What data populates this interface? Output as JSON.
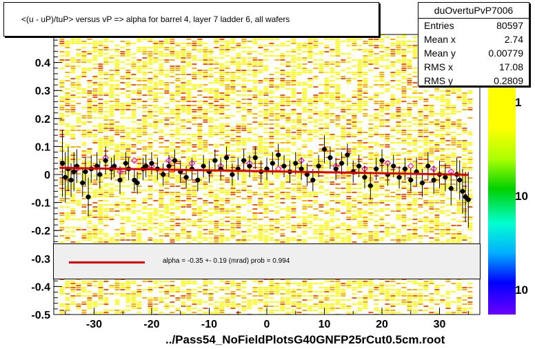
{
  "title": "<(u - uP)/tuP> versus   vP => alpha for barrel 4, layer 7 ladder 6, all wafers",
  "stats": {
    "name": "duOvertuPvP7006",
    "rows": [
      {
        "label": "Entries",
        "value": "80597"
      },
      {
        "label": "Mean x",
        "value": "2.74"
      },
      {
        "label": "Mean y",
        "value": "0.00779"
      },
      {
        "label": "RMS x",
        "value": "17.08"
      },
      {
        "label": "RMS y",
        "value": "0.2809"
      }
    ]
  },
  "fit_text": "alpha =   -0.35 +-  0.19 (mrad) prob = 0.994",
  "xlabel": "../Pass54_NoFieldPlotsG40GNFP25rCut0.5cm.root",
  "palette_labels": [
    "1",
    "10",
    "10"
  ],
  "colors": {
    "fit_line": "#e00000",
    "points": "#000000",
    "open_markers": "#ff00ff",
    "heat_low": "#ffff00",
    "heat_mid": "#ffaa00",
    "heat_high": "#ff5500"
  },
  "chart_data": {
    "type": "scatter",
    "xlim": [
      -37,
      37
    ],
    "ylim": [
      -0.5,
      0.5
    ],
    "x_ticks": [
      -30,
      -20,
      -10,
      0,
      10,
      20,
      30
    ],
    "y_ticks": [
      -0.5,
      -0.4,
      -0.3,
      -0.2,
      -0.1,
      0,
      0.1,
      0.2,
      0.3,
      0.4
    ],
    "fit": {
      "x": [
        -36,
        35
      ],
      "y": [
        0.024,
        -0.0008
      ]
    },
    "points": [
      {
        "x": -35.5,
        "y": 0.04,
        "e": 0.12
      },
      {
        "x": -35,
        "y": -0.01,
        "e": 0.09
      },
      {
        "x": -34.5,
        "y": 0.02,
        "e": 0.08
      },
      {
        "x": -34,
        "y": -0.02,
        "e": 0.06
      },
      {
        "x": -33.5,
        "y": 0.01,
        "e": 0.07
      },
      {
        "x": -33,
        "y": 0.03,
        "e": 0.06
      },
      {
        "x": -32,
        "y": -0.03,
        "e": 0.05
      },
      {
        "x": -31.5,
        "y": 0.01,
        "e": 0.05
      },
      {
        "x": -31,
        "y": -0.08,
        "e": 0.07
      },
      {
        "x": -30.5,
        "y": 0.02,
        "e": 0.05
      },
      {
        "x": -29.5,
        "y": 0.03,
        "e": 0.05
      },
      {
        "x": -29,
        "y": 0.0,
        "e": 0.05
      },
      {
        "x": -28,
        "y": 0.05,
        "e": 0.05
      },
      {
        "x": -27,
        "y": 0.02,
        "e": 0.04
      },
      {
        "x": -26.5,
        "y": 0.03,
        "e": 0.04
      },
      {
        "x": -25.5,
        "y": -0.02,
        "e": 0.05
      },
      {
        "x": -24.5,
        "y": 0.04,
        "e": 0.04
      },
      {
        "x": -24,
        "y": 0.02,
        "e": 0.04
      },
      {
        "x": -23,
        "y": -0.02,
        "e": 0.04
      },
      {
        "x": -22.5,
        "y": -0.03,
        "e": 0.04
      },
      {
        "x": -21.5,
        "y": 0.02,
        "e": 0.04
      },
      {
        "x": -21,
        "y": 0.03,
        "e": 0.04
      },
      {
        "x": -20,
        "y": 0.04,
        "e": 0.04
      },
      {
        "x": -19,
        "y": 0.02,
        "e": 0.04
      },
      {
        "x": -18,
        "y": 0.0,
        "e": 0.04
      },
      {
        "x": -17,
        "y": 0.03,
        "e": 0.04
      },
      {
        "x": -16,
        "y": 0.05,
        "e": 0.04
      },
      {
        "x": -15,
        "y": 0.01,
        "e": 0.04
      },
      {
        "x": -14,
        "y": -0.01,
        "e": 0.04
      },
      {
        "x": -13,
        "y": 0.02,
        "e": 0.04
      },
      {
        "x": -12,
        "y": -0.02,
        "e": 0.04
      },
      {
        "x": -11,
        "y": 0.03,
        "e": 0.04
      },
      {
        "x": -10,
        "y": 0.01,
        "e": 0.04
      },
      {
        "x": -9,
        "y": 0.05,
        "e": 0.04
      },
      {
        "x": -8,
        "y": 0.02,
        "e": 0.04
      },
      {
        "x": -7,
        "y": 0.06,
        "e": 0.04
      },
      {
        "x": -6,
        "y": 0.0,
        "e": 0.04
      },
      {
        "x": -5,
        "y": 0.02,
        "e": 0.04
      },
      {
        "x": -4,
        "y": 0.05,
        "e": 0.04
      },
      {
        "x": -3,
        "y": 0.03,
        "e": 0.04
      },
      {
        "x": -2,
        "y": 0.06,
        "e": 0.04
      },
      {
        "x": -1,
        "y": 0.01,
        "e": 0.04
      },
      {
        "x": 0,
        "y": 0.02,
        "e": 0.04
      },
      {
        "x": 1,
        "y": 0.04,
        "e": 0.04
      },
      {
        "x": 2,
        "y": 0.07,
        "e": 0.04
      },
      {
        "x": 3,
        "y": 0.03,
        "e": 0.04
      },
      {
        "x": 4,
        "y": 0.01,
        "e": 0.04
      },
      {
        "x": 5,
        "y": 0.04,
        "e": 0.04
      },
      {
        "x": 6,
        "y": 0.02,
        "e": 0.04
      },
      {
        "x": 7,
        "y": 0.0,
        "e": 0.04
      },
      {
        "x": 8,
        "y": -0.02,
        "e": 0.04
      },
      {
        "x": 9,
        "y": 0.03,
        "e": 0.04
      },
      {
        "x": 10,
        "y": 0.09,
        "e": 0.05
      },
      {
        "x": 11,
        "y": 0.06,
        "e": 0.04
      },
      {
        "x": 12,
        "y": 0.02,
        "e": 0.04
      },
      {
        "x": 13,
        "y": 0.04,
        "e": 0.04
      },
      {
        "x": 14,
        "y": 0.07,
        "e": 0.04
      },
      {
        "x": 15,
        "y": 0.01,
        "e": 0.04
      },
      {
        "x": 16,
        "y": 0.03,
        "e": 0.04
      },
      {
        "x": 17,
        "y": -0.01,
        "e": 0.04
      },
      {
        "x": 18,
        "y": -0.04,
        "e": 0.05
      },
      {
        "x": 19,
        "y": 0.02,
        "e": 0.04
      },
      {
        "x": 20,
        "y": 0.05,
        "e": 0.04
      },
      {
        "x": 21,
        "y": 0.0,
        "e": 0.04
      },
      {
        "x": 22,
        "y": 0.03,
        "e": 0.04
      },
      {
        "x": 23,
        "y": -0.01,
        "e": 0.04
      },
      {
        "x": 24,
        "y": 0.02,
        "e": 0.04
      },
      {
        "x": 25,
        "y": -0.02,
        "e": 0.04
      },
      {
        "x": 26,
        "y": 0.01,
        "e": 0.05
      },
      {
        "x": 27,
        "y": -0.03,
        "e": 0.05
      },
      {
        "x": 28,
        "y": 0.03,
        "e": 0.05
      },
      {
        "x": 29,
        "y": -0.02,
        "e": 0.05
      },
      {
        "x": 30,
        "y": 0.0,
        "e": 0.05
      },
      {
        "x": 31,
        "y": -0.01,
        "e": 0.05
      },
      {
        "x": 32,
        "y": -0.05,
        "e": 0.06
      },
      {
        "x": 33,
        "y": 0.0,
        "e": 0.06
      },
      {
        "x": 33.5,
        "y": -0.02,
        "e": 0.07
      },
      {
        "x": 34,
        "y": -0.06,
        "e": 0.08
      },
      {
        "x": 34.5,
        "y": -0.08,
        "e": 0.09
      },
      {
        "x": 35,
        "y": -0.09,
        "e": 0.1
      }
    ],
    "open_markers": [
      {
        "x": -33,
        "y": 0.02
      },
      {
        "x": -28,
        "y": 0.06
      },
      {
        "x": -25.5,
        "y": 0.01
      },
      {
        "x": -23,
        "y": 0.05
      },
      {
        "x": -20,
        "y": 0.03
      },
      {
        "x": -17,
        "y": 0.05
      },
      {
        "x": -13,
        "y": 0.04
      },
      {
        "x": -8,
        "y": 0.03
      },
      {
        "x": -3,
        "y": 0.04
      },
      {
        "x": 2,
        "y": 0.02
      },
      {
        "x": 6,
        "y": 0.05
      },
      {
        "x": 12,
        "y": 0.03
      },
      {
        "x": 17,
        "y": 0.02
      },
      {
        "x": 21,
        "y": 0.04
      },
      {
        "x": 25,
        "y": 0.03
      },
      {
        "x": 29,
        "y": 0.02
      },
      {
        "x": 32,
        "y": 0.01
      }
    ]
  }
}
